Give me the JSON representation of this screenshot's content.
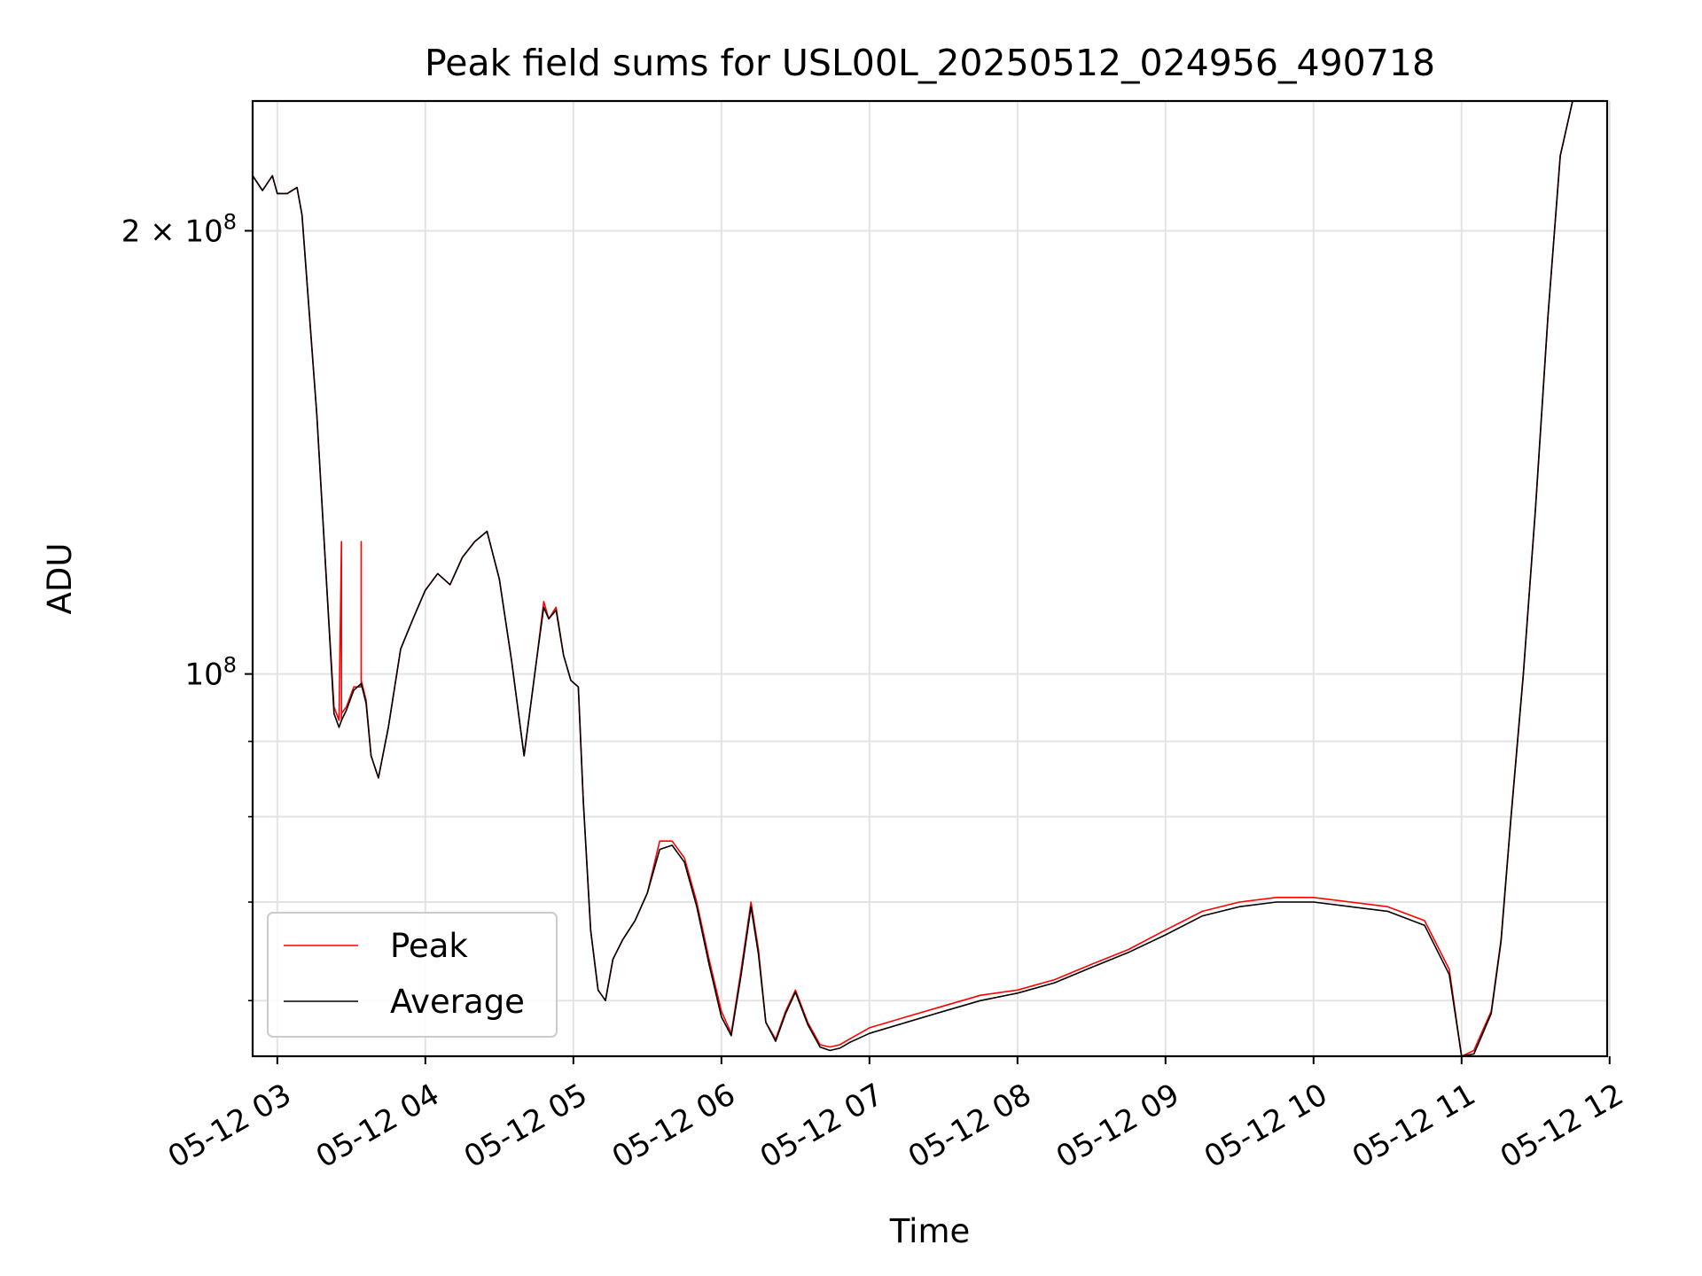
{
  "chart_data": {
    "type": "line",
    "title": "Peak field sums for USL00L_20250512_024956_490718",
    "xlabel": "Time",
    "ylabel": "ADU",
    "yscale": "log",
    "grid": true,
    "legend_placement": "lower-left",
    "x_ticks": [
      "05-12 03",
      "05-12 04",
      "05-12 05",
      "05-12 06",
      "05-12 07",
      "05-12 08",
      "05-12 09",
      "05-12 10",
      "05-12 11",
      "05-12 12"
    ],
    "y_ticks": [
      "2 × 10^8",
      "10^8"
    ],
    "xlim": [
      "2025-05-12 02:50",
      "2025-05-12 11:59"
    ],
    "ylim": [
      55000000,
      245000000
    ],
    "series": [
      {
        "name": "Peak",
        "color": "#ff0000",
        "x": [
          "2025-05-12 02:50",
          "2025-05-12 02:54",
          "2025-05-12 02:58",
          "2025-05-12 03:00",
          "2025-05-12 03:04",
          "2025-05-12 03:08",
          "2025-05-12 03:10",
          "2025-05-12 03:12",
          "2025-05-12 03:16",
          "2025-05-12 03:20",
          "2025-05-12 03:23",
          "2025-05-12 03:25",
          "2025-05-12 03:26",
          "2025-05-12 03:26",
          "2025-05-12 03:26",
          "2025-05-12 03:28",
          "2025-05-12 03:31",
          "2025-05-12 03:34",
          "2025-05-12 03:34",
          "2025-05-12 03:34",
          "2025-05-12 03:36",
          "2025-05-12 03:38",
          "2025-05-12 03:41",
          "2025-05-12 03:45",
          "2025-05-12 03:50",
          "2025-05-12 03:55",
          "2025-05-12 04:00",
          "2025-05-12 04:05",
          "2025-05-12 04:10",
          "2025-05-12 04:15",
          "2025-05-12 04:20",
          "2025-05-12 04:25",
          "2025-05-12 04:30",
          "2025-05-12 04:35",
          "2025-05-12 04:40",
          "2025-05-12 04:45",
          "2025-05-12 04:48",
          "2025-05-12 04:50",
          "2025-05-12 04:53",
          "2025-05-12 04:56",
          "2025-05-12 04:59",
          "2025-05-12 05:02",
          "2025-05-12 05:04",
          "2025-05-12 05:07",
          "2025-05-12 05:10",
          "2025-05-12 05:13",
          "2025-05-12 05:16",
          "2025-05-12 05:20",
          "2025-05-12 05:25",
          "2025-05-12 05:30",
          "2025-05-12 05:35",
          "2025-05-12 05:40",
          "2025-05-12 05:45",
          "2025-05-12 05:50",
          "2025-05-12 05:55",
          "2025-05-12 06:00",
          "2025-05-12 06:04",
          "2025-05-12 06:08",
          "2025-05-12 06:12",
          "2025-05-12 06:15",
          "2025-05-12 06:18",
          "2025-05-12 06:22",
          "2025-05-12 06:26",
          "2025-05-12 06:30",
          "2025-05-12 06:35",
          "2025-05-12 06:40",
          "2025-05-12 06:44",
          "2025-05-12 06:48",
          "2025-05-12 06:52",
          "2025-05-12 06:56",
          "2025-05-12 07:00",
          "2025-05-12 07:15",
          "2025-05-12 07:30",
          "2025-05-12 07:45",
          "2025-05-12 08:00",
          "2025-05-12 08:15",
          "2025-05-12 08:30",
          "2025-05-12 08:45",
          "2025-05-12 09:00",
          "2025-05-12 09:15",
          "2025-05-12 09:30",
          "2025-05-12 09:45",
          "2025-05-12 10:00",
          "2025-05-12 10:15",
          "2025-05-12 10:30",
          "2025-05-12 10:45",
          "2025-05-12 10:55",
          "2025-05-12 11:00",
          "2025-05-12 11:05",
          "2025-05-12 11:08",
          "2025-05-12 11:12",
          "2025-05-12 11:16",
          "2025-05-12 11:20",
          "2025-05-12 11:25",
          "2025-05-12 11:30",
          "2025-05-12 11:35",
          "2025-05-12 11:40",
          "2025-05-12 11:45",
          "2025-05-12 11:48",
          "2025-05-12 11:51",
          "2025-05-12 11:54"
        ],
        "values": [
          218000000,
          213000000,
          218000000,
          212000000,
          212000000,
          214000000,
          205000000,
          185000000,
          150000000,
          115000000,
          95000000,
          93000000,
          123000000,
          93000000,
          94000000,
          95000000,
          98000000,
          98000000,
          123000000,
          99000000,
          96000000,
          88000000,
          85000000,
          92000000,
          104000000,
          109000000,
          114000000,
          117000000,
          115000000,
          120000000,
          123000000,
          125000000,
          116000000,
          102000000,
          88000000,
          102000000,
          112000000,
          109000000,
          111000000,
          103000000,
          99000000,
          98000000,
          82000000,
          67000000,
          61000000,
          60000000,
          64000000,
          66000000,
          68000000,
          71000000,
          77000000,
          77000000,
          75000000,
          70000000,
          64000000,
          59000000,
          57000000,
          63000000,
          70000000,
          65000000,
          58000000,
          56500000,
          59000000,
          61000000,
          58000000,
          56000000,
          55800000,
          56000000,
          56500000,
          57000000,
          57500000,
          58500000,
          59500000,
          60500000,
          61000000,
          62000000,
          63500000,
          65000000,
          67000000,
          69000000,
          70000000,
          70500000,
          70500000,
          70000000,
          69500000,
          68000000,
          63000000,
          55000000,
          55500000,
          57000000,
          59000000,
          66000000,
          80000000,
          100000000,
          130000000,
          175000000,
          225000000,
          245000000,
          245000000,
          245000000,
          245000000
        ]
      },
      {
        "name": "Average",
        "color": "#000000",
        "x": [
          "2025-05-12 02:50",
          "2025-05-12 02:54",
          "2025-05-12 02:58",
          "2025-05-12 03:00",
          "2025-05-12 03:04",
          "2025-05-12 03:08",
          "2025-05-12 03:10",
          "2025-05-12 03:12",
          "2025-05-12 03:16",
          "2025-05-12 03:20",
          "2025-05-12 03:23",
          "2025-05-12 03:25",
          "2025-05-12 03:26",
          "2025-05-12 03:28",
          "2025-05-12 03:31",
          "2025-05-12 03:34",
          "2025-05-12 03:36",
          "2025-05-12 03:38",
          "2025-05-12 03:41",
          "2025-05-12 03:45",
          "2025-05-12 03:50",
          "2025-05-12 03:55",
          "2025-05-12 04:00",
          "2025-05-12 04:05",
          "2025-05-12 04:10",
          "2025-05-12 04:15",
          "2025-05-12 04:20",
          "2025-05-12 04:25",
          "2025-05-12 04:30",
          "2025-05-12 04:35",
          "2025-05-12 04:40",
          "2025-05-12 04:45",
          "2025-05-12 04:48",
          "2025-05-12 04:50",
          "2025-05-12 04:53",
          "2025-05-12 04:56",
          "2025-05-12 04:59",
          "2025-05-12 05:02",
          "2025-05-12 05:04",
          "2025-05-12 05:07",
          "2025-05-12 05:10",
          "2025-05-12 05:13",
          "2025-05-12 05:16",
          "2025-05-12 05:20",
          "2025-05-12 05:25",
          "2025-05-12 05:30",
          "2025-05-12 05:35",
          "2025-05-12 05:40",
          "2025-05-12 05:45",
          "2025-05-12 05:50",
          "2025-05-12 05:55",
          "2025-05-12 06:00",
          "2025-05-12 06:04",
          "2025-05-12 06:08",
          "2025-05-12 06:12",
          "2025-05-12 06:15",
          "2025-05-12 06:18",
          "2025-05-12 06:22",
          "2025-05-12 06:26",
          "2025-05-12 06:30",
          "2025-05-12 06:35",
          "2025-05-12 06:40",
          "2025-05-12 06:44",
          "2025-05-12 06:48",
          "2025-05-12 06:52",
          "2025-05-12 06:56",
          "2025-05-12 07:00",
          "2025-05-12 07:15",
          "2025-05-12 07:30",
          "2025-05-12 07:45",
          "2025-05-12 08:00",
          "2025-05-12 08:15",
          "2025-05-12 08:30",
          "2025-05-12 08:45",
          "2025-05-12 09:00",
          "2025-05-12 09:15",
          "2025-05-12 09:30",
          "2025-05-12 09:45",
          "2025-05-12 10:00",
          "2025-05-12 10:15",
          "2025-05-12 10:30",
          "2025-05-12 10:45",
          "2025-05-12 10:55",
          "2025-05-12 11:00",
          "2025-05-12 11:05",
          "2025-05-12 11:08",
          "2025-05-12 11:12",
          "2025-05-12 11:16",
          "2025-05-12 11:20",
          "2025-05-12 11:25",
          "2025-05-12 11:30",
          "2025-05-12 11:35",
          "2025-05-12 11:40",
          "2025-05-12 11:45",
          "2025-05-12 11:48",
          "2025-05-12 11:51",
          "2025-05-12 11:54"
        ],
        "values": [
          218000000,
          213000000,
          218000000,
          212000000,
          212000000,
          214000000,
          205000000,
          185000000,
          150000000,
          115000000,
          94000000,
          92000000,
          93000000,
          94500000,
          97500000,
          98500000,
          95500000,
          88000000,
          85000000,
          92000000,
          104000000,
          109000000,
          114000000,
          117000000,
          115000000,
          120000000,
          123000000,
          125000000,
          116000000,
          102000000,
          88000000,
          102000000,
          111000000,
          109000000,
          110500000,
          103000000,
          99000000,
          98000000,
          82000000,
          67000000,
          61000000,
          60000000,
          64000000,
          66000000,
          68000000,
          71000000,
          76000000,
          76500000,
          74500000,
          69500000,
          63500000,
          58500000,
          56800000,
          62500000,
          69500000,
          64500000,
          58000000,
          56300000,
          58800000,
          60800000,
          57800000,
          55800000,
          55500000,
          55700000,
          56200000,
          56600000,
          57000000,
          58000000,
          59000000,
          60000000,
          60700000,
          61700000,
          63200000,
          64700000,
          66500000,
          68500000,
          69500000,
          70000000,
          70000000,
          69500000,
          69000000,
          67500000,
          62500000,
          54800000,
          55200000,
          56700000,
          58800000,
          65800000,
          79800000,
          99800000,
          129800000,
          174800000,
          224800000,
          245000000,
          245000000,
          245000000,
          245000000
        ]
      }
    ]
  }
}
